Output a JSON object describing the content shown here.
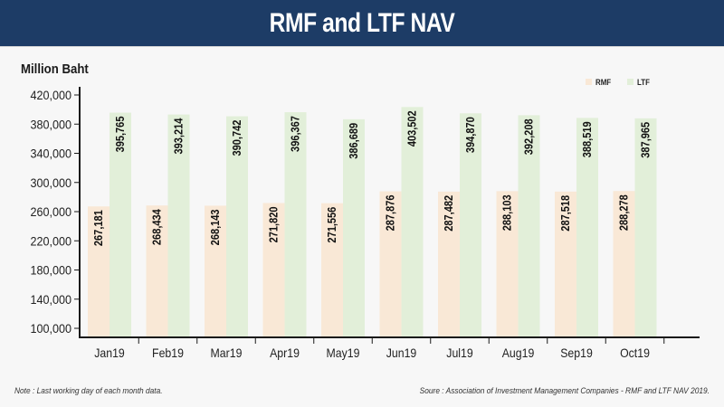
{
  "header": {
    "title": "RMF and LTF NAV"
  },
  "chart_data": {
    "type": "bar",
    "title": "RMF and LTF NAV",
    "xlabel": "",
    "ylabel": "Million Baht",
    "ylim": [
      90000,
      430000
    ],
    "yticks": [
      100000,
      140000,
      180000,
      220000,
      260000,
      300000,
      340000,
      380000,
      420000
    ],
    "ytick_labels": [
      "100,000",
      "140,000",
      "180,000",
      "220,000",
      "260,000",
      "300,000",
      "340,000",
      "380,000",
      "420,000"
    ],
    "grid": false,
    "legend_position": "top-right",
    "categories": [
      "Jan19",
      "Feb19",
      "Mar19",
      "Apr19",
      "May19",
      "Jun19",
      "Jul19",
      "Aug19",
      "Sep19",
      "Oct19"
    ],
    "series": [
      {
        "name": "RMF",
        "color": "#f9e8d6",
        "values": [
          267181,
          268434,
          268143,
          271820,
          271556,
          287876,
          287482,
          288103,
          287518,
          288278
        ],
        "labels": [
          "267,181",
          "268,434",
          "268,143",
          "271,820",
          "271,556",
          "287,876",
          "287,482",
          "288,103",
          "287,518",
          "288,278"
        ]
      },
      {
        "name": "LTF",
        "color": "#e2efd9",
        "values": [
          395765,
          393214,
          390742,
          396367,
          386689,
          403502,
          394870,
          392208,
          388519,
          387965
        ],
        "labels": [
          "395,765",
          "393,214",
          "390,742",
          "396,367",
          "386,689",
          "403,502",
          "394,870",
          "392,208",
          "388,519",
          "387,965"
        ]
      }
    ]
  },
  "footer": {
    "note": "Note : Last working day of each month data.",
    "source": "Soure : Association of Investment Management Companies - RMF and LTF NAV 2019."
  }
}
